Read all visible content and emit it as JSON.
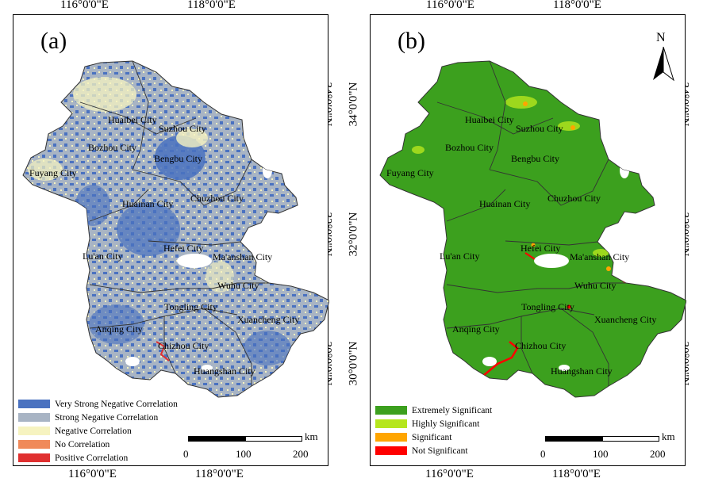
{
  "longitude_labels": {
    "lon1": "116°0'0\"E",
    "lon2": "118°0'0\"E"
  },
  "latitude_labels": {
    "lat34": "34°0'0\"N",
    "lat32": "32°0'0\"N",
    "lat30": "30°0'0\"N"
  },
  "panel_a": {
    "letter": "(a)",
    "legend": [
      {
        "label": "Very Strong Negative Correlation",
        "color": "#4a72c0"
      },
      {
        "label": "Strong Negative Correlation",
        "color": "#a8b4c4"
      },
      {
        "label": "Negative Correlation",
        "color": "#f6f3c0"
      },
      {
        "label": "No Correlation",
        "color": "#f08a5a"
      },
      {
        "label": "Positive Correlation",
        "color": "#e03030"
      }
    ]
  },
  "panel_b": {
    "letter": "(b)",
    "north": "N",
    "legend": [
      {
        "label": "Extremely Significant",
        "color": "#3ca01e"
      },
      {
        "label": "Highly Significant",
        "color": "#b5e61d"
      },
      {
        "label": "Significant",
        "color": "#ffa500"
      },
      {
        "label": "Not Significant",
        "color": "#ff0000"
      }
    ]
  },
  "cities": {
    "huaibei": "Huaibei City",
    "suzhou": "Suzhou City",
    "bozhou": "Bozhou City",
    "bengbu": "Bengbu City",
    "fuyang": "Fuyang City",
    "chuzhou": "Chuzhou City",
    "huainan": "Huainan City",
    "hefei": "Hefei City",
    "luan": "Lu'an City",
    "maanshan": "Ma'anshan City",
    "wuhu": "Wuhu City",
    "tongling": "Tongling City",
    "xuancheng": "Xuancheng City",
    "anqing": "Anqing City",
    "chizhou": "Chizhou City",
    "huangshan": "Huangshan City"
  },
  "scale": {
    "unit": "km",
    "tick0": "0",
    "tick1": "100",
    "tick2": "200"
  },
  "colors": {
    "boundary": "#333333",
    "lake": "#ffffff"
  }
}
